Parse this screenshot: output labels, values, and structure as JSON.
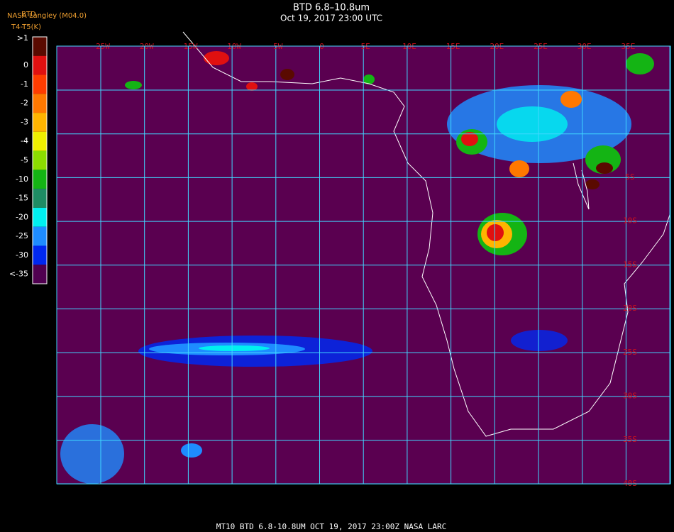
{
  "header": {
    "title": "BTD 6.8–10.8um",
    "subtitle": "Oct 19, 2017 23:00 UTC"
  },
  "legend": {
    "title": "BTD",
    "source": "NASA Langley (M04.0)",
    "units": "T4-T5(K)",
    "levels": [
      {
        "label": ">1",
        "color": "#5a0a00"
      },
      {
        "label": "0",
        "color": "#e01010"
      },
      {
        "label": "-1",
        "color": "#ff3c00"
      },
      {
        "label": "-2",
        "color": "#ff7800"
      },
      {
        "label": "-3",
        "color": "#ffb400"
      },
      {
        "label": "-4",
        "color": "#f0f000"
      },
      {
        "label": "-5",
        "color": "#8cdc00"
      },
      {
        "label": "-10",
        "color": "#14b414"
      },
      {
        "label": "-15",
        "color": "#1e8c64"
      },
      {
        "label": "-20",
        "color": "#00f0f0"
      },
      {
        "label": "-25",
        "color": "#1e8cff"
      },
      {
        "label": "-30",
        "color": "#0028f0"
      },
      {
        "label": "<-35",
        "color": "#500050"
      }
    ]
  },
  "map": {
    "longitude_labels": [
      "25W",
      "20W",
      "15W",
      "10W",
      "5W",
      "0",
      "5E",
      "10E",
      "15E",
      "20E",
      "25E",
      "30E",
      "35E"
    ],
    "latitude_labels": [
      "5S",
      "10S",
      "15S",
      "20S",
      "25S",
      "30S",
      "35S",
      "40S"
    ]
  },
  "footer": {
    "text": "MT10  BTD 6.8-10.8UM   OCT 19, 2017 23:00Z   NASA LARC"
  }
}
